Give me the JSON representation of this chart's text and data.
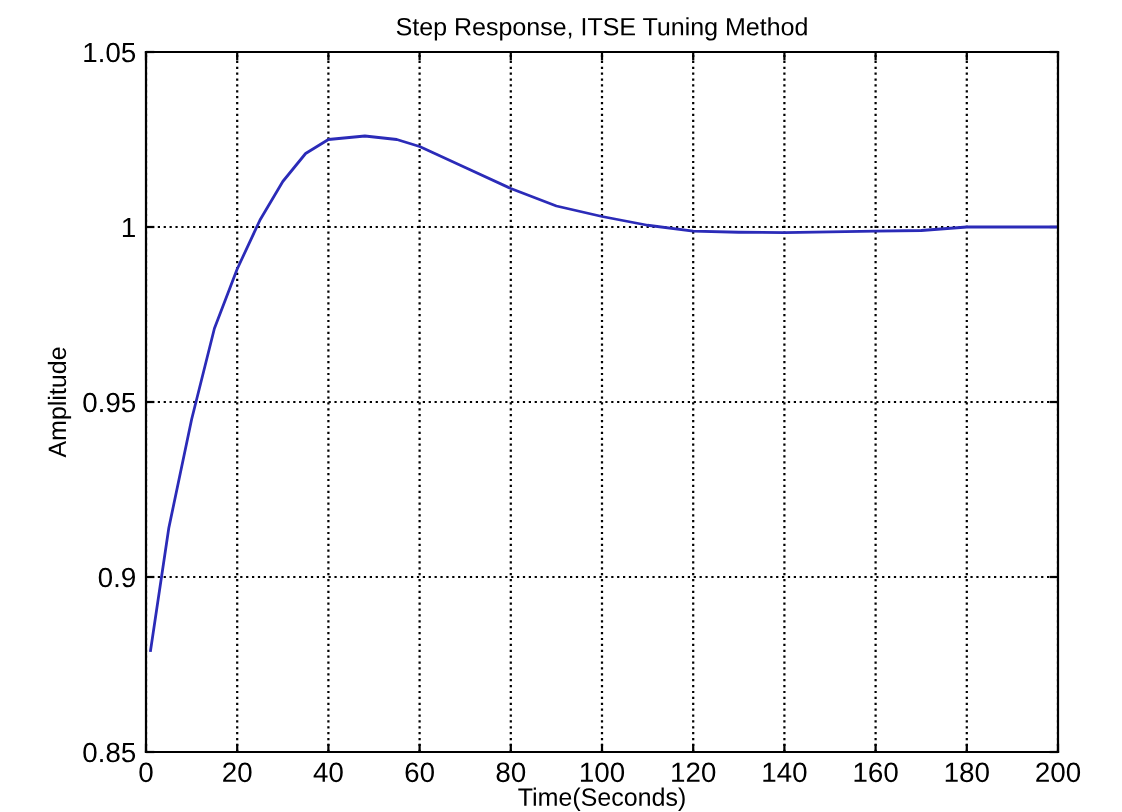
{
  "chart_data": {
    "type": "line",
    "title": "Step Response, ITSE Tuning Method",
    "xlabel": "Time(Seconds)",
    "ylabel": "Amplitude",
    "x": [
      1,
      5,
      10,
      15,
      20,
      25,
      30,
      35,
      40,
      48,
      55,
      60,
      70,
      80,
      90,
      100,
      110,
      120,
      130,
      140,
      150,
      160,
      170,
      180,
      190,
      200
    ],
    "series": [
      {
        "color": "#2b2bb8",
        "values": [
          0.879,
          0.914,
          0.945,
          0.971,
          0.988,
          1.002,
          1.013,
          1.021,
          1.025,
          1.026,
          1.025,
          1.023,
          1.017,
          1.011,
          1.006,
          1.003,
          1.0005,
          0.9988,
          0.9985,
          0.9984,
          0.9986,
          0.9988,
          0.999,
          1.0,
          1.0,
          1.0
        ]
      }
    ],
    "xlim": [
      0,
      200
    ],
    "ylim": [
      0.85,
      1.05
    ],
    "xticks": [
      0,
      20,
      40,
      60,
      80,
      100,
      120,
      140,
      160,
      180,
      200
    ],
    "yticks": [
      0.85,
      0.9,
      0.95,
      1,
      1.05
    ],
    "grid": true,
    "line_style": "solid"
  }
}
